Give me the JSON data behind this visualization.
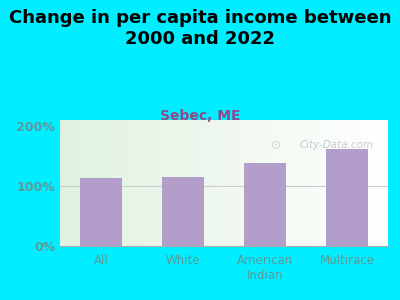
{
  "title": "Change in per capita income between\n2000 and 2022",
  "subtitle": "Sebec, ME",
  "categories": [
    "All",
    "White",
    "American\nIndian",
    "Multirace"
  ],
  "values": [
    113,
    115,
    138,
    162
  ],
  "bar_color": "#b39dca",
  "background_outer": "#00eeff",
  "yticks": [
    0,
    100,
    200
  ],
  "ytick_labels": [
    "0%",
    "100%",
    "200%"
  ],
  "ylim": [
    0,
    210
  ],
  "title_fontsize": 13,
  "subtitle_fontsize": 10,
  "subtitle_color": "#8b4a8b",
  "tick_label_color": "#5a9a9a",
  "watermark": "City-Data.com"
}
